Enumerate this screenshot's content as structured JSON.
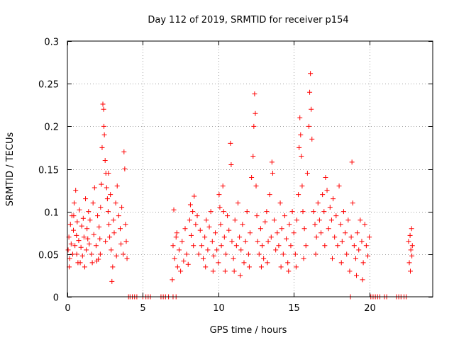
{
  "chart_data": {
    "type": "scatter",
    "title": "Day 112 of 2019, SRMTID for receiver p154",
    "xlabel": "GPS time / hours",
    "ylabel": "SRMTID / TECUs",
    "xlim": [
      0,
      24.2
    ],
    "ylim": [
      0,
      0.3
    ],
    "x_ticks": [
      0,
      5,
      10,
      15,
      20
    ],
    "x_tick_labels": [
      "0",
      "5",
      "10",
      "15",
      "20"
    ],
    "y_ticks": [
      0,
      0.05,
      0.1,
      0.15,
      0.2,
      0.25,
      0.3
    ],
    "y_tick_labels": [
      "0",
      "0.05",
      "0.1",
      "0.15",
      "0.2",
      "0.25",
      "0.3"
    ],
    "grid": true,
    "marker": "plus",
    "color": "#ff0000",
    "series": [
      {
        "name": "SRMTID",
        "points": [
          [
            0.05,
            0.055
          ],
          [
            0.1,
            0.07
          ],
          [
            0.15,
            0.045
          ],
          [
            0.2,
            0.085
          ],
          [
            0.25,
            0.062
          ],
          [
            0.3,
            0.095
          ],
          [
            0.35,
            0.05
          ],
          [
            0.4,
            0.078
          ],
          [
            0.45,
            0.11
          ],
          [
            0.5,
            0.06
          ],
          [
            0.55,
            0.125
          ],
          [
            0.6,
            0.072
          ],
          [
            0.65,
            0.088
          ],
          [
            0.7,
            0.04
          ],
          [
            0.75,
            0.066
          ],
          [
            0.8,
            0.102
          ],
          [
            0.9,
            0.058
          ],
          [
            0.95,
            0.083
          ],
          [
            1.0,
            0.048
          ],
          [
            1.05,
            0.092
          ],
          [
            1.1,
            0.07
          ],
          [
            1.2,
            0.115
          ],
          [
            1.25,
            0.055
          ],
          [
            1.3,
            0.08
          ],
          [
            1.4,
            0.1
          ],
          [
            1.45,
            0.062
          ],
          [
            1.5,
            0.09
          ],
          [
            1.6,
            0.05
          ],
          [
            1.7,
            0.11
          ],
          [
            1.75,
            0.073
          ],
          [
            1.8,
            0.128
          ],
          [
            1.9,
            0.06
          ],
          [
            2.0,
            0.095
          ],
          [
            2.05,
            0.044
          ],
          [
            2.1,
            0.082
          ],
          [
            2.15,
            0.068
          ],
          [
            2.2,
            0.105
          ],
          [
            2.25,
            0.132
          ],
          [
            2.3,
            0.175
          ],
          [
            2.35,
            0.226
          ],
          [
            2.4,
            0.22
          ],
          [
            2.42,
            0.2
          ],
          [
            2.45,
            0.19
          ],
          [
            2.5,
            0.16
          ],
          [
            2.55,
            0.145
          ],
          [
            2.6,
            0.128
          ],
          [
            2.65,
            0.115
          ],
          [
            2.7,
            0.1
          ],
          [
            2.75,
            0.085
          ],
          [
            2.8,
            0.07
          ],
          [
            2.85,
            0.12
          ],
          [
            2.9,
            0.055
          ],
          [
            2.95,
            0.018
          ],
          [
            3.0,
            0.035
          ],
          [
            3.05,
            0.09
          ],
          [
            3.1,
            0.075
          ],
          [
            3.2,
            0.11
          ],
          [
            3.3,
            0.13
          ],
          [
            3.4,
            0.095
          ],
          [
            3.5,
            0.08
          ],
          [
            3.55,
            0.062
          ],
          [
            3.6,
            0.105
          ],
          [
            3.7,
            0.05
          ],
          [
            3.75,
            0.17
          ],
          [
            3.8,
            0.15
          ],
          [
            3.85,
            0.085
          ],
          [
            3.9,
            0.065
          ],
          [
            3.95,
            0.045
          ],
          [
            0.12,
            0.035
          ],
          [
            0.42,
            0.095
          ],
          [
            0.62,
            0.05
          ],
          [
            0.85,
            0.04
          ],
          [
            1.15,
            0.035
          ],
          [
            1.35,
            0.068
          ],
          [
            1.65,
            0.04
          ],
          [
            1.95,
            0.042
          ],
          [
            2.18,
            0.05
          ],
          [
            2.52,
            0.065
          ],
          [
            2.72,
            0.145
          ],
          [
            3.25,
            0.048
          ],
          [
            4.05,
            0.0
          ],
          [
            4.15,
            0.0
          ],
          [
            4.3,
            0.0
          ],
          [
            4.45,
            0.0
          ],
          [
            4.6,
            0.0
          ],
          [
            5.0,
            0.0
          ],
          [
            5.2,
            0.0
          ],
          [
            5.35,
            0.0
          ],
          [
            5.5,
            0.0
          ],
          [
            6.2,
            0.0
          ],
          [
            6.35,
            0.0
          ],
          [
            6.5,
            0.0
          ],
          [
            6.7,
            0.0
          ],
          [
            7.0,
            0.0
          ],
          [
            7.2,
            0.0
          ],
          [
            6.95,
            0.02
          ],
          [
            7.0,
            0.06
          ],
          [
            7.05,
            0.102
          ],
          [
            7.1,
            0.045
          ],
          [
            7.2,
            0.07
          ],
          [
            7.3,
            0.035
          ],
          [
            7.4,
            0.055
          ],
          [
            7.5,
            0.03
          ],
          [
            7.6,
            0.065
          ],
          [
            7.7,
            0.042
          ],
          [
            7.8,
            0.08
          ],
          [
            7.9,
            0.05
          ],
          [
            8.0,
            0.038
          ],
          [
            8.1,
            0.09
          ],
          [
            8.2,
            0.072
          ],
          [
            8.3,
            0.1
          ],
          [
            8.35,
            0.06
          ],
          [
            8.4,
            0.118
          ],
          [
            8.5,
            0.085
          ],
          [
            8.6,
            0.095
          ],
          [
            8.7,
            0.05
          ],
          [
            8.8,
            0.078
          ],
          [
            8.9,
            0.06
          ],
          [
            9.0,
            0.045
          ],
          [
            9.1,
            0.07
          ],
          [
            9.2,
            0.09
          ],
          [
            9.3,
            0.055
          ],
          [
            9.4,
            0.082
          ],
          [
            9.5,
            0.1
          ],
          [
            9.6,
            0.065
          ],
          [
            9.7,
            0.048
          ],
          [
            9.8,
            0.075
          ],
          [
            9.9,
            0.055
          ],
          [
            10.0,
            0.04
          ],
          [
            10.05,
            0.12
          ],
          [
            10.1,
            0.105
          ],
          [
            10.15,
            0.085
          ],
          [
            10.2,
            0.06
          ],
          [
            10.3,
            0.13
          ],
          [
            10.35,
            0.1
          ],
          [
            10.4,
            0.07
          ],
          [
            10.5,
            0.05
          ],
          [
            10.6,
            0.095
          ],
          [
            10.7,
            0.078
          ],
          [
            10.8,
            0.18
          ],
          [
            10.85,
            0.155
          ],
          [
            10.9,
            0.065
          ],
          [
            11.0,
            0.045
          ],
          [
            11.1,
            0.09
          ],
          [
            11.2,
            0.06
          ],
          [
            11.3,
            0.11
          ],
          [
            11.4,
            0.07
          ],
          [
            11.5,
            0.055
          ],
          [
            11.6,
            0.085
          ],
          [
            11.7,
            0.04
          ],
          [
            11.8,
            0.065
          ],
          [
            11.9,
            0.1
          ],
          [
            12.0,
            0.05
          ],
          [
            12.1,
            0.075
          ],
          [
            12.2,
            0.14
          ],
          [
            12.3,
            0.165
          ],
          [
            12.35,
            0.2
          ],
          [
            12.4,
            0.238
          ],
          [
            12.45,
            0.215
          ],
          [
            12.5,
            0.13
          ],
          [
            12.55,
            0.095
          ],
          [
            12.6,
            0.065
          ],
          [
            12.7,
            0.05
          ],
          [
            12.8,
            0.08
          ],
          [
            12.9,
            0.06
          ],
          [
            13.0,
            0.045
          ],
          [
            13.1,
            0.088
          ],
          [
            13.2,
            0.1
          ],
          [
            13.3,
            0.065
          ],
          [
            13.4,
            0.12
          ],
          [
            13.5,
            0.07
          ],
          [
            13.55,
            0.158
          ],
          [
            13.6,
            0.145
          ],
          [
            13.7,
            0.09
          ],
          [
            13.8,
            0.055
          ],
          [
            13.9,
            0.075
          ],
          [
            14.0,
            0.06
          ],
          [
            14.1,
            0.11
          ],
          [
            14.2,
            0.08
          ],
          [
            14.3,
            0.05
          ],
          [
            14.4,
            0.095
          ],
          [
            14.5,
            0.068
          ],
          [
            14.6,
            0.04
          ],
          [
            14.7,
            0.085
          ],
          [
            14.8,
            0.06
          ],
          [
            14.9,
            0.1
          ],
          [
            15.0,
            0.075
          ],
          [
            15.1,
            0.05
          ],
          [
            15.2,
            0.09
          ],
          [
            15.3,
            0.12
          ],
          [
            15.35,
            0.175
          ],
          [
            15.4,
            0.21
          ],
          [
            15.45,
            0.19
          ],
          [
            15.5,
            0.165
          ],
          [
            15.55,
            0.13
          ],
          [
            15.6,
            0.1
          ],
          [
            15.7,
            0.08
          ],
          [
            15.8,
            0.06
          ],
          [
            15.9,
            0.145
          ],
          [
            16.0,
            0.2
          ],
          [
            16.05,
            0.24
          ],
          [
            16.1,
            0.262
          ],
          [
            16.15,
            0.22
          ],
          [
            16.2,
            0.185
          ],
          [
            16.3,
            0.1
          ],
          [
            16.4,
            0.085
          ],
          [
            16.5,
            0.07
          ],
          [
            16.6,
            0.11
          ],
          [
            16.7,
            0.09
          ],
          [
            16.8,
            0.075
          ],
          [
            16.9,
            0.12
          ],
          [
            17.0,
            0.1
          ],
          [
            17.1,
            0.14
          ],
          [
            17.2,
            0.125
          ],
          [
            17.3,
            0.08
          ],
          [
            17.4,
            0.105
          ],
          [
            17.5,
            0.09
          ],
          [
            17.6,
            0.115
          ],
          [
            17.7,
            0.07
          ],
          [
            17.8,
            0.095
          ],
          [
            17.9,
            0.06
          ],
          [
            18.0,
            0.13
          ],
          [
            18.1,
            0.085
          ],
          [
            18.2,
            0.065
          ],
          [
            18.3,
            0.1
          ],
          [
            18.4,
            0.075
          ],
          [
            18.5,
            0.05
          ],
          [
            18.6,
            0.09
          ],
          [
            18.7,
            0.03
          ],
          [
            18.8,
            0.07
          ],
          [
            18.85,
            0.158
          ],
          [
            18.9,
            0.11
          ],
          [
            19.0,
            0.06
          ],
          [
            19.1,
            0.045
          ],
          [
            19.2,
            0.075
          ],
          [
            19.3,
            0.055
          ],
          [
            19.4,
            0.09
          ],
          [
            19.5,
            0.065
          ],
          [
            19.6,
            0.04
          ],
          [
            19.7,
            0.085
          ],
          [
            19.8,
            0.06
          ],
          [
            19.9,
            0.048
          ],
          [
            20.0,
            0.07
          ],
          [
            7.25,
            0.075
          ],
          [
            8.15,
            0.108
          ],
          [
            9.15,
            0.035
          ],
          [
            9.65,
            0.03
          ],
          [
            10.45,
            0.03
          ],
          [
            11.05,
            0.03
          ],
          [
            11.45,
            0.025
          ],
          [
            12.05,
            0.035
          ],
          [
            12.85,
            0.035
          ],
          [
            13.25,
            0.04
          ],
          [
            14.15,
            0.035
          ],
          [
            14.65,
            0.03
          ],
          [
            15.15,
            0.035
          ],
          [
            15.65,
            0.045
          ],
          [
            16.45,
            0.05
          ],
          [
            17.05,
            0.06
          ],
          [
            17.55,
            0.045
          ],
          [
            18.15,
            0.04
          ],
          [
            19.15,
            0.025
          ],
          [
            19.55,
            0.02
          ],
          [
            18.75,
            0.0
          ],
          [
            20.1,
            0.0
          ],
          [
            20.25,
            0.0
          ],
          [
            20.4,
            0.0
          ],
          [
            20.55,
            0.0
          ],
          [
            20.7,
            0.0
          ],
          [
            21.0,
            0.0
          ],
          [
            21.15,
            0.0
          ],
          [
            21.8,
            0.0
          ],
          [
            21.95,
            0.0
          ],
          [
            22.1,
            0.0
          ],
          [
            22.3,
            0.0
          ],
          [
            22.45,
            0.0
          ],
          [
            22.6,
            0.065
          ],
          [
            22.65,
            0.04
          ],
          [
            22.7,
            0.072
          ],
          [
            22.72,
            0.03
          ],
          [
            22.75,
            0.055
          ],
          [
            22.8,
            0.08
          ],
          [
            22.82,
            0.048
          ],
          [
            22.85,
            0.06
          ]
        ]
      }
    ]
  }
}
